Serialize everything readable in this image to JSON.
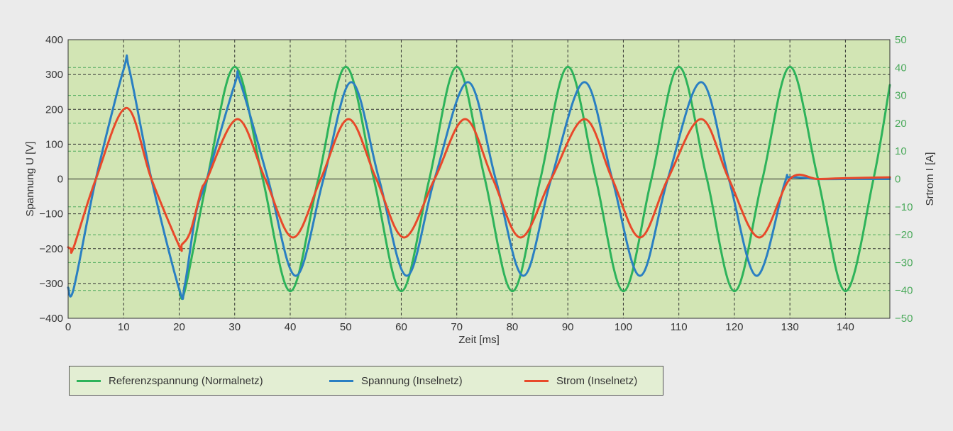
{
  "chart_data": {
    "type": "line",
    "xlabel": "Zeit [ms]",
    "ylabel_left": "Spannung U [V]",
    "ylabel_right": "Srtrom I [A]",
    "xlim": [
      0,
      148
    ],
    "ylim_left": [
      -400,
      400
    ],
    "ylim_right": [
      -50,
      50
    ],
    "x_ticks": [
      0,
      10,
      20,
      30,
      40,
      50,
      60,
      70,
      80,
      90,
      100,
      110,
      120,
      130,
      140
    ],
    "y_left_ticks": [
      400,
      300,
      200,
      100,
      0,
      -100,
      -200,
      -300,
      -400
    ],
    "y_left_tick_labels": [
      "400",
      "300",
      "200",
      "100",
      "0",
      "−100",
      "−200",
      "−300",
      "−400"
    ],
    "y_right_ticks": [
      50,
      40,
      30,
      20,
      10,
      0,
      -10,
      -20,
      -30,
      -40,
      -50
    ],
    "y_right_tick_labels": [
      "50",
      "40",
      "30",
      "20",
      "10",
      "0",
      "−10",
      "−20",
      "−30",
      "−40",
      "−50"
    ],
    "grid": true,
    "legend_position": "bottom-left",
    "colors": {
      "page_background": "#ebebeb",
      "plot_background": "#d2e5b4",
      "right_axis": "#4caa5c",
      "referenz": "#2eb35a",
      "spannung": "#2a7fc2",
      "strom": "#e8492a"
    },
    "series": [
      {
        "name": "Referenzspannung (Normalnetz)",
        "axis": "left",
        "color": "#2eb35a",
        "x": [
          0,
          20,
          21,
          25,
          30,
          35,
          40,
          45,
          50,
          55,
          60,
          65,
          70,
          75,
          80,
          85,
          90,
          95,
          100,
          105,
          110,
          115,
          120,
          125,
          130,
          135,
          140,
          145,
          148
        ],
        "y": [
          null,
          -315,
          -322,
          -4,
          322,
          4,
          -322,
          -4,
          322,
          4,
          -322,
          -4,
          322,
          4,
          -322,
          -4,
          322,
          4,
          -322,
          -4,
          322,
          4,
          -322,
          -4,
          322,
          4,
          -322,
          -4,
          270
        ]
      },
      {
        "name": "Spannung (Inselnetz)",
        "axis": "left",
        "color": "#2a7fc2",
        "x": [
          0,
          1,
          5,
          10,
          11,
          15,
          20,
          21,
          23,
          25,
          30,
          31,
          36,
          41,
          46,
          51,
          56,
          61,
          66,
          72,
          77,
          82,
          87,
          93,
          98,
          103,
          108,
          114,
          119,
          124,
          129,
          130,
          135,
          140,
          148
        ],
        "y": [
          -312,
          -315,
          0,
          315,
          316,
          0,
          -316,
          -305,
          -100,
          0,
          272,
          278,
          0,
          -278,
          0,
          278,
          0,
          -278,
          0,
          278,
          0,
          -278,
          0,
          278,
          0,
          -278,
          0,
          278,
          0,
          -278,
          -15,
          5,
          0,
          0,
          0
        ]
      },
      {
        "name": "Strom (Inselnetz)",
        "axis": "right",
        "color": "#e8492a",
        "x": [
          0,
          0.5,
          1,
          5,
          10.5,
          15,
          20,
          20.5,
          22,
          24,
          25,
          30.5,
          35.5,
          40.5,
          45.5,
          50.5,
          55.5,
          60.5,
          66,
          71.5,
          76.5,
          81.5,
          87,
          93,
          98,
          103,
          108,
          114,
          119,
          124.5,
          130,
          135,
          140,
          148
        ],
        "y": [
          -24.5,
          -25,
          -24.5,
          0,
          25.5,
          0,
          -24,
          -23.5,
          -19,
          -4,
          0,
          21.5,
          0,
          -21,
          0,
          21.5,
          0,
          -21,
          0,
          21.5,
          0,
          -21,
          0,
          21.5,
          0,
          -21,
          0,
          21.5,
          0,
          -21,
          0,
          0,
          0.3,
          0.6
        ]
      }
    ]
  }
}
